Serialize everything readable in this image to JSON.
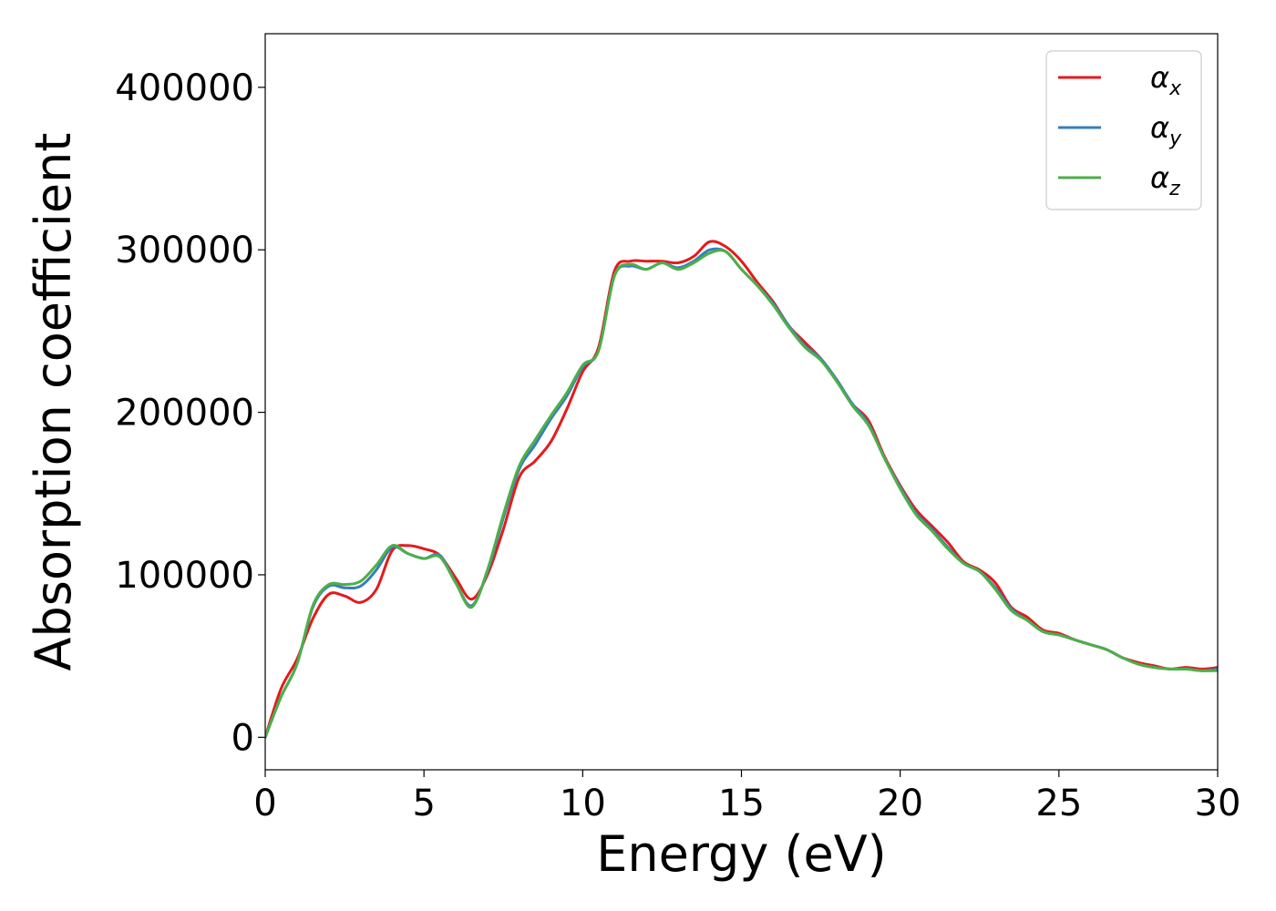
{
  "chart_data": {
    "type": "line",
    "title": "",
    "xlabel": "Energy (eV)",
    "ylabel": "Absorption coefficient",
    "xlim": [
      0,
      30
    ],
    "ylim": [
      -20000,
      433000
    ],
    "xticks": [
      0,
      5,
      10,
      15,
      20,
      25,
      30
    ],
    "yticks": [
      0,
      100000,
      200000,
      300000,
      400000
    ],
    "xtick_labels": [
      "0",
      "5",
      "10",
      "15",
      "20",
      "25",
      "30"
    ],
    "ytick_labels": [
      "0",
      "100000",
      "200000",
      "300000",
      "400000"
    ],
    "grid": false,
    "legend_position": "top-right",
    "series": [
      {
        "name": "α_x",
        "base": "α",
        "sub": "x",
        "color": "#e41a1c",
        "x": [
          0,
          0.5,
          1,
          1.5,
          2,
          2.5,
          3,
          3.5,
          4,
          4.5,
          5,
          5.5,
          6,
          6.5,
          7,
          7.5,
          8,
          8.5,
          9,
          9.5,
          10,
          10.5,
          11,
          11.5,
          12,
          12.5,
          13,
          13.5,
          14,
          14.5,
          15,
          15.5,
          16,
          16.5,
          17,
          17.5,
          18,
          18.5,
          19,
          19.5,
          20,
          20.5,
          21,
          21.5,
          22,
          22.5,
          23,
          23.5,
          24,
          24.5,
          25,
          25.5,
          26,
          26.5,
          27,
          27.5,
          28,
          28.5,
          29,
          29.5,
          30
        ],
        "values": [
          0,
          30000,
          48000,
          73000,
          88000,
          87000,
          83000,
          91000,
          115000,
          118000,
          116000,
          112000,
          98000,
          85000,
          100000,
          128000,
          160000,
          170000,
          182000,
          202000,
          225000,
          240000,
          287000,
          293000,
          293000,
          293000,
          292000,
          296000,
          305000,
          302000,
          293000,
          280000,
          268000,
          253000,
          243000,
          233000,
          220000,
          205000,
          195000,
          173000,
          155000,
          140000,
          130000,
          120000,
          108000,
          103000,
          95000,
          80000,
          74000,
          66000,
          64000,
          60000,
          57000,
          54000,
          49000,
          46000,
          44000,
          42000,
          43000,
          42000,
          43000
        ]
      },
      {
        "name": "α_y",
        "base": "α",
        "sub": "y",
        "color": "#377eb8",
        "x": [
          0,
          0.5,
          1,
          1.5,
          2,
          2.5,
          3,
          3.5,
          4,
          4.5,
          5,
          5.5,
          6,
          6.5,
          7,
          7.5,
          8,
          8.5,
          9,
          9.5,
          10,
          10.5,
          11,
          11.5,
          12,
          12.5,
          13,
          13.5,
          14,
          14.5,
          15,
          15.5,
          16,
          16.5,
          17,
          17.5,
          18,
          18.5,
          19,
          19.5,
          20,
          20.5,
          21,
          21.5,
          22,
          22.5,
          23,
          23.5,
          24,
          24.5,
          25,
          25.5,
          26,
          26.5,
          27,
          27.5,
          28,
          28.5,
          29,
          29.5,
          30
        ],
        "values": [
          0,
          25000,
          45000,
          80000,
          93000,
          92000,
          93000,
          103000,
          117000,
          113000,
          110000,
          112000,
          95000,
          81000,
          102000,
          135000,
          165000,
          180000,
          196000,
          210000,
          228000,
          238000,
          284000,
          290000,
          288000,
          292000,
          289000,
          293000,
          300000,
          299000,
          288000,
          278000,
          267000,
          253000,
          241000,
          233000,
          220000,
          205000,
          193000,
          172000,
          154000,
          138000,
          128000,
          117000,
          107000,
          102000,
          92000,
          79000,
          72000,
          65000,
          63000,
          60000,
          57000,
          54000,
          49000,
          45000,
          43000,
          42000,
          42000,
          41000,
          42000
        ]
      },
      {
        "name": "α_z",
        "base": "α",
        "sub": "z",
        "color": "#4daf4a",
        "x": [
          0,
          0.5,
          1,
          1.5,
          2,
          2.5,
          3,
          3.5,
          4,
          4.5,
          5,
          5.5,
          6,
          6.5,
          7,
          7.5,
          8,
          8.5,
          9,
          9.5,
          10,
          10.5,
          11,
          11.5,
          12,
          12.5,
          13,
          13.5,
          14,
          14.5,
          15,
          15.5,
          16,
          16.5,
          17,
          17.5,
          18,
          18.5,
          19,
          19.5,
          20,
          20.5,
          21,
          21.5,
          22,
          22.5,
          23,
          23.5,
          24,
          24.5,
          25,
          25.5,
          26,
          26.5,
          27,
          27.5,
          28,
          28.5,
          29,
          29.5,
          30
        ],
        "values": [
          0,
          25000,
          45000,
          81000,
          94000,
          94000,
          96000,
          106000,
          118000,
          113000,
          110000,
          111000,
          95000,
          80000,
          103000,
          137000,
          167000,
          183000,
          198000,
          212000,
          229000,
          238000,
          284000,
          291000,
          288000,
          292000,
          288000,
          292000,
          298000,
          299000,
          288000,
          278000,
          266000,
          252000,
          240000,
          232000,
          219000,
          204000,
          192000,
          172000,
          153000,
          137000,
          127000,
          116000,
          107000,
          102000,
          91000,
          78000,
          72000,
          65000,
          63000,
          60000,
          57000,
          54000,
          49000,
          45000,
          43000,
          42000,
          42000,
          41000,
          41000
        ]
      }
    ]
  }
}
